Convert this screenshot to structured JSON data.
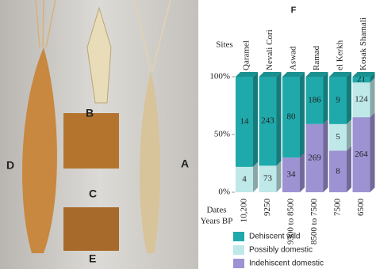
{
  "panel_labels": [
    "A",
    "B",
    "C",
    "D",
    "E"
  ],
  "chart_data": {
    "type": "stacked-bar-3d",
    "title": "F",
    "category_label": "Sites",
    "date_label": [
      "Dates",
      "Years BP"
    ],
    "categories": [
      "Qaramel",
      "Nevali Cori",
      "Aswad",
      "Ramad",
      "el Kerkh",
      "Kosak Shamali"
    ],
    "dates": [
      "10,200",
      "9250",
      "9300 to 8500",
      "8500 to 7500",
      "7500",
      "6500"
    ],
    "ylim": [
      0,
      100
    ],
    "yticks": [
      {
        "value": 0,
        "label": "0%"
      },
      {
        "value": 50,
        "label": "50%"
      },
      {
        "value": 100,
        "label": "100%"
      }
    ],
    "series": [
      {
        "name": "Dehiscent wild",
        "color": "#1fa9ab",
        "values": [
          78,
          77,
          70,
          41,
          41,
          5
        ],
        "counts": [
          14,
          243,
          80,
          186,
          9,
          21
        ]
      },
      {
        "name": "Possibly domestic",
        "color": "#bfe8e8",
        "values": [
          22,
          23,
          0,
          0,
          23,
          30
        ],
        "counts": [
          4,
          73,
          null,
          null,
          5,
          124
        ]
      },
      {
        "name": "Indehiscent domestic",
        "color": "#9d93d3",
        "values": [
          0,
          0,
          30,
          59,
          36,
          65
        ],
        "counts": [
          null,
          null,
          34,
          269,
          8,
          264
        ]
      }
    ]
  }
}
